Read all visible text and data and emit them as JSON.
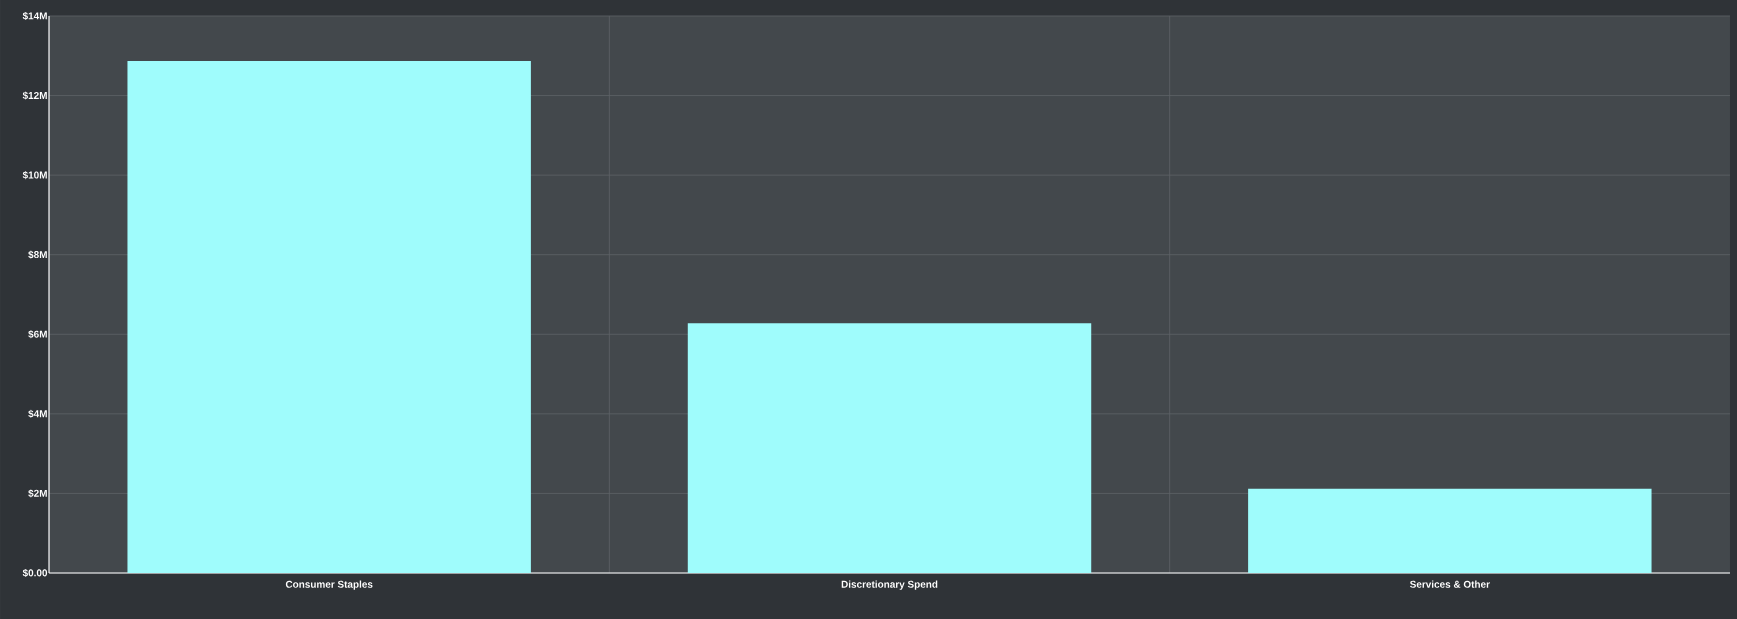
{
  "chart_data": {
    "type": "bar",
    "categories": [
      "Consumer Staples",
      "Discretionary Spend",
      "Services & Other"
    ],
    "values": [
      12.87,
      6.28,
      2.12
    ],
    "color": "#9ffcfc",
    "ylim": [
      0,
      14
    ],
    "yticks": [
      {
        "value": 0,
        "label": "$0.00"
      },
      {
        "value": 2,
        "label": "$2M"
      },
      {
        "value": 4,
        "label": "$4M"
      },
      {
        "value": 6,
        "label": "$6M"
      },
      {
        "value": 8,
        "label": "$8M"
      },
      {
        "value": 10,
        "label": "$10M"
      },
      {
        "value": 12,
        "label": "$12M"
      },
      {
        "value": 14,
        "label": "$14M"
      }
    ],
    "grid": true
  }
}
